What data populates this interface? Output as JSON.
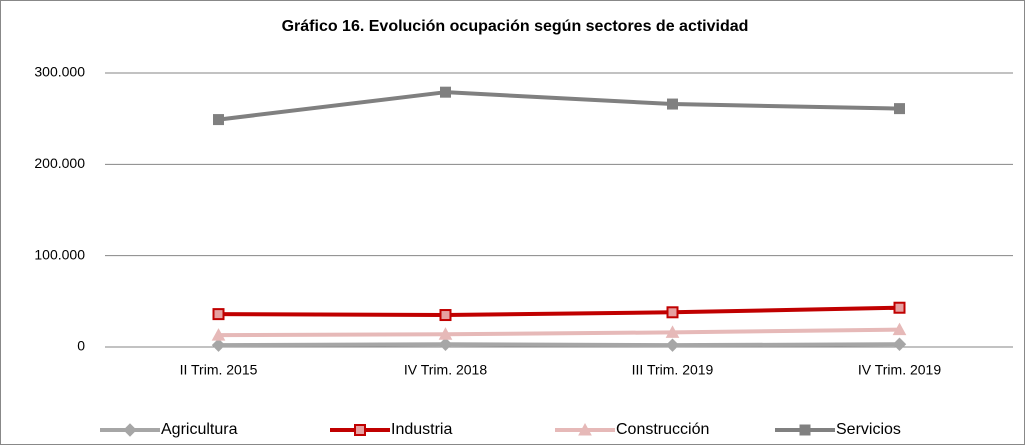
{
  "chart_data": {
    "type": "line",
    "title": "Gráfico 16. Evolución ocupación según sectores de actividad",
    "categories": [
      "II Trim. 2015",
      "IV Trim. 2018",
      "III Trim. 2019",
      "IV Trim. 2019"
    ],
    "series": [
      {
        "name": "Agricultura",
        "color": "#a6a6a6",
        "marker": "diamond",
        "values": [
          2000,
          3000,
          2000,
          3000
        ]
      },
      {
        "name": "Industria",
        "color": "#c00000",
        "marker": "square",
        "values": [
          36000,
          35000,
          38000,
          43000
        ]
      },
      {
        "name": "Construcción",
        "color": "#e6b9b8",
        "marker": "triangle",
        "values": [
          13000,
          14000,
          16000,
          19000
        ]
      },
      {
        "name": "Servicios",
        "color": "#808080",
        "marker": "square",
        "values": [
          249000,
          279000,
          266000,
          261000
        ]
      }
    ],
    "ylim": [
      0,
      300000
    ],
    "yticks": [
      0,
      {
        "value": 100000,
        "label": "100.000"
      },
      {
        "value": 200000,
        "label": "200.000"
      },
      {
        "value": 300000,
        "label": "300.000"
      }
    ],
    "grid": true,
    "legend": "bottom"
  }
}
